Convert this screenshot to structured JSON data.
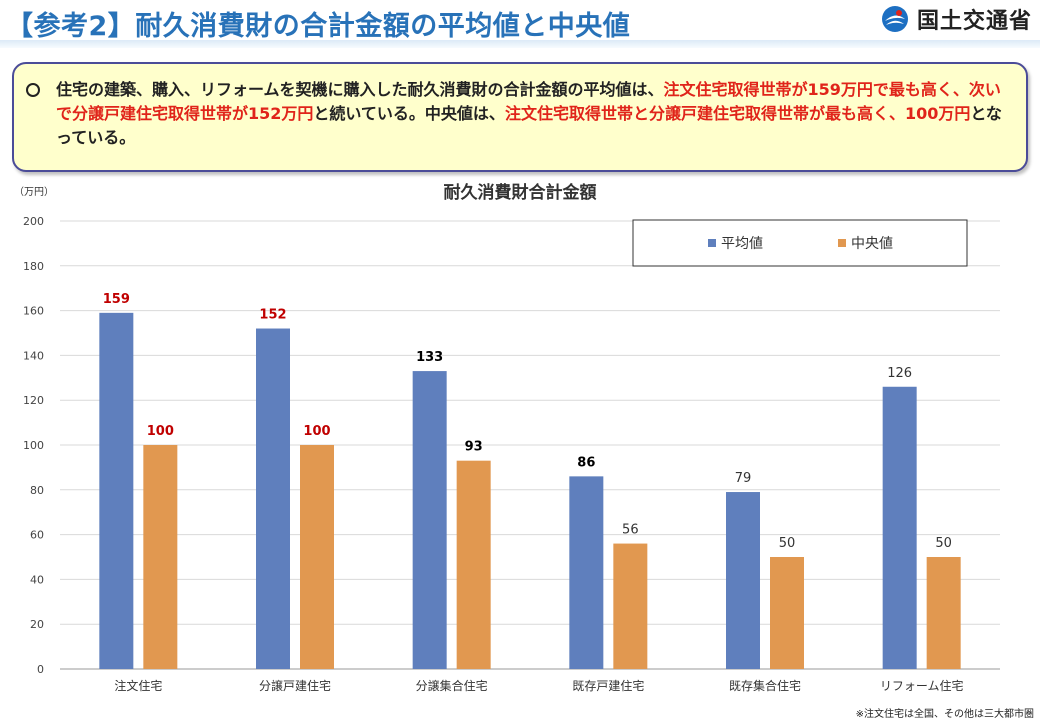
{
  "page": {
    "title": "【参考2】耐久消費財の合計金額の平均値と中央値",
    "logo_text": "国土交通省",
    "logo_icon": "mlit-logo-icon"
  },
  "summary": {
    "bullet_icon": "hollow-circle-bullet-icon",
    "segments": [
      {
        "text": "住宅の建築、購入、リフォームを契機に購入した耐久消費財の合計金額の平均値は、",
        "highlight": false
      },
      {
        "text": "注文住宅取得世帯が159万円で最も高く、次いで分譲戸建住宅取得世帯が152万円",
        "highlight": true
      },
      {
        "text": "と続いている。中央値は、",
        "highlight": false
      },
      {
        "text": "注文住宅取得世帯と分譲戸建住宅取得世帯が最も高く、100万円",
        "highlight": true
      },
      {
        "text": "となっている。",
        "highlight": false
      }
    ],
    "highlight_color": "#e0241a"
  },
  "chart_data": {
    "type": "bar",
    "title": "耐久消費財合計金額",
    "unit_label": "（万円）",
    "categories": [
      "注文住宅",
      "分譲戸建住宅",
      "分譲集合住宅",
      "既存戸建住宅",
      "既存集合住宅",
      "リフォーム住宅"
    ],
    "series": [
      {
        "name": "平均値",
        "color": "#5f7fbd",
        "values": [
          159,
          152,
          133,
          86,
          79,
          126
        ]
      },
      {
        "name": "中央値",
        "color": "#e19850",
        "values": [
          100,
          100,
          93,
          56,
          50,
          50
        ]
      }
    ],
    "label_colors": {
      "平均値": [
        "#c00000",
        "#c00000",
        "#000000",
        "#000000",
        "#333333",
        "#333333"
      ],
      "中央値": [
        "#c00000",
        "#c00000",
        "#000000",
        "#333333",
        "#333333",
        "#333333"
      ]
    },
    "ylim": [
      0,
      200
    ],
    "yticks": [
      0,
      20,
      40,
      60,
      80,
      100,
      120,
      140,
      160,
      180,
      200
    ],
    "grid": true,
    "legend_position": "top-right"
  },
  "footnote": "※注文住宅は全国、その他は三大都市圏"
}
